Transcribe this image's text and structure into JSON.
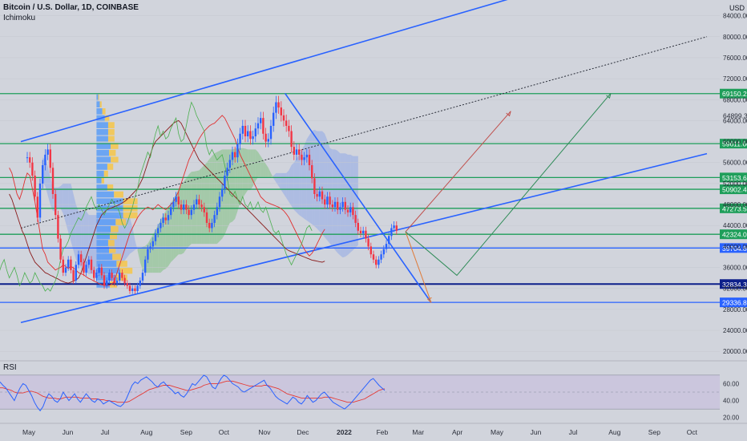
{
  "header": {
    "symbol": "Bitcoin / U.S. Dollar, 1D, COINBASE",
    "indicator": "Ichimoku"
  },
  "rsi": {
    "label": "RSI"
  },
  "axis": {
    "currency": "USD"
  },
  "colors": {
    "background": "#d1d4dc",
    "candle_up": "#2962ff",
    "candle_down": "#f23645",
    "channel": "#2962ff",
    "level_green": "#1e9e5a",
    "level_blue": "#2962ff",
    "level_navy": "#0c1f8a",
    "tenkan": "#e03030",
    "kijun_lagging": "#4caf50",
    "cloud_green": "#7fbf7f",
    "cloud_blue": "#8fa8e8",
    "volume_profile_blue": "#5b9cf6",
    "volume_profile_yellow": "#f7c548",
    "rsi_line": "#2962ff",
    "rsi_ma": "#e53935"
  },
  "chart_data": {
    "type": "candlestick",
    "title": "Bitcoin / U.S. Dollar, 1D, COINBASE",
    "ylim": [
      18500,
      87000
    ],
    "y_ticks": [
      20000,
      24000,
      28000,
      32000,
      36000,
      40000,
      44000,
      48000,
      52000,
      56000,
      60000,
      64000,
      68000,
      72000,
      76000,
      80000,
      84000
    ],
    "x_tick_labels": [
      "May",
      "Jun",
      "Jul",
      "Aug",
      "Sep",
      "Oct",
      "Nov",
      "Dec",
      "2022",
      "Feb",
      "Mar",
      "Apr",
      "May",
      "Jun",
      "Jul",
      "Aug",
      "Sep",
      "Oct"
    ],
    "x_tick_days": [
      0,
      31,
      61,
      92,
      123,
      153,
      184,
      214,
      245,
      276,
      304,
      335,
      365,
      396,
      426,
      457,
      488,
      518
    ],
    "last_price": 64899.32,
    "price_levels": [
      {
        "label": "69150.23",
        "value": 69150.23,
        "kind": "green"
      },
      {
        "label": "59611.60",
        "value": 59611.6,
        "kind": "green"
      },
      {
        "label": "53153.62",
        "value": 53153.62,
        "kind": "green"
      },
      {
        "label": "50902.41",
        "value": 50902.41,
        "kind": "green"
      },
      {
        "label": "47273.58",
        "value": 47273.58,
        "kind": "green"
      },
      {
        "label": "42324.00",
        "value": 42324.0,
        "kind": "green"
      },
      {
        "label": "39704.88",
        "value": 39704.88,
        "kind": "blue"
      },
      {
        "label": "32834.35",
        "value": 32834.35,
        "kind": "navy"
      },
      {
        "label": "29336.80",
        "value": 29336.8,
        "kind": "blue"
      }
    ],
    "channel_lines": [
      {
        "name": "upper channel",
        "points": [
          [
            -5,
            60000
          ],
          [
            380,
            87500
          ]
        ]
      },
      {
        "name": "lower channel",
        "points": [
          [
            -5,
            25500
          ],
          [
            530,
            57700
          ]
        ]
      }
    ],
    "dotted_trendline": {
      "points": [
        [
          -5,
          43500
        ],
        [
          530,
          80000
        ]
      ]
    },
    "descending_trendline": {
      "points": [
        [
          201,
          69200
        ],
        [
          315,
          29300
        ]
      ]
    },
    "projections": [
      {
        "name": "bullish path",
        "color": "#c0504d",
        "points": [
          [
            295,
            42800
          ],
          [
            377,
            65800
          ]
        ]
      },
      {
        "name": "bearish path",
        "color": "#e07b39",
        "points": [
          [
            295,
            42800
          ],
          [
            315,
            29300
          ]
        ]
      },
      {
        "name": "alternative path",
        "color": "#2e8b57",
        "points": [
          [
            295,
            42800
          ],
          [
            335,
            34500
          ],
          [
            455,
            69200
          ]
        ]
      }
    ],
    "price_closes": [
      57000,
      56000,
      53500,
      49500,
      45500,
      52000,
      55500,
      57500,
      58500,
      55000,
      50000,
      46000,
      41500,
      37500,
      35000,
      36000,
      37500,
      35500,
      33500,
      36500,
      38500,
      37000,
      35000,
      36500,
      37500,
      35500,
      34000,
      35000,
      36000,
      34500,
      32500,
      33500,
      35000,
      34000,
      33000,
      33500,
      35000,
      34000,
      33000,
      32500,
      31500,
      32000,
      31500,
      32500,
      33500,
      35000,
      37500,
      39500,
      40000,
      41000,
      42500,
      43500,
      44500,
      45500,
      45000,
      46000,
      47500,
      48500,
      49500,
      48000,
      47000,
      48000,
      47000,
      46000,
      47000,
      48000,
      49000,
      48000,
      47500,
      46500,
      44500,
      43500,
      44500,
      46000,
      47500,
      49500,
      51000,
      53500,
      55000,
      56500,
      58000,
      57000,
      59500,
      61500,
      63000,
      61000,
      62000,
      60500,
      61000,
      62500,
      63500,
      64500,
      61500,
      60000,
      60500,
      63000,
      65500,
      67500,
      66500,
      65000,
      64000,
      63000,
      62000,
      59000,
      57500,
      58500,
      57500,
      56500,
      57000,
      57500,
      55500,
      53000,
      50000,
      49500,
      50500,
      49000,
      48000,
      49500,
      48000,
      47500,
      48500,
      47000,
      47500,
      48500,
      47000,
      46500,
      47500,
      46000,
      44500,
      43000,
      42500,
      43000,
      41500,
      40000,
      38500,
      37500,
      36500,
      37500,
      38500,
      39500,
      40500,
      42000,
      43500,
      44000,
      43000
    ],
    "tenkan": [
      55000,
      54000,
      52000,
      50000,
      49000,
      50500,
      52500,
      54000,
      53500,
      51000,
      48500,
      45500,
      42500,
      39500,
      38500,
      37000,
      36500,
      36000,
      35500,
      35800,
      36000,
      36500,
      36200,
      35800,
      36200,
      35900,
      35500,
      35000,
      34800,
      34600,
      34200,
      33900,
      33700,
      33400,
      33200,
      32900,
      32700,
      32600,
      32500,
      32600,
      32800,
      33500,
      35000,
      36500,
      38000,
      39500,
      41000,
      42500,
      43500,
      44500,
      45500,
      46200,
      46800,
      47200,
      47500,
      47300,
      47000,
      47500,
      48000,
      47600,
      47300,
      47000,
      47500,
      48000,
      48500,
      49500,
      50500,
      52000,
      53500,
      55000,
      56500,
      57500,
      58500,
      59500,
      60500,
      61300,
      62000,
      62500,
      63000,
      63300,
      63500,
      64000,
      64500,
      65000,
      64500,
      63500,
      62500,
      61500,
      60500,
      59000,
      57500,
      56500,
      55500,
      54500,
      53500,
      52500,
      51500,
      50500,
      49500,
      49000,
      48500,
      48300,
      48100,
      47900,
      47700,
      47500,
      47200,
      46800,
      46200,
      45500,
      44500,
      43500,
      42500,
      41500,
      40500,
      39500,
      38800,
      38200,
      38700,
      39500,
      40500,
      41500,
      42500,
      43300
    ],
    "kijun": [
      50000,
      49000,
      47500,
      46000,
      44500,
      43000,
      42000,
      40500,
      39000,
      38000,
      37000,
      36500,
      36000,
      35500,
      35000,
      34800,
      34500,
      34300,
      34000,
      33800,
      33500,
      33300,
      33100,
      33000,
      33200,
      33400,
      33600,
      34000,
      35000,
      36500,
      38000,
      39500,
      41000,
      42500,
      44000,
      45000,
      46000,
      46500,
      47000,
      47200,
      47400,
      47600,
      47800,
      48000,
      48300,
      48600,
      49000,
      49500,
      50000,
      50500,
      51000,
      52000,
      53000,
      54500,
      56000,
      57500,
      59000,
      60000,
      60500,
      61000,
      61500,
      62000,
      62500,
      63000,
      63500,
      63800,
      64000,
      63500,
      62500,
      61500,
      60500,
      59500,
      58500,
      57500,
      56500,
      56000,
      55500,
      55000,
      54500,
      54000,
      53500,
      53000,
      52500,
      52000,
      51500,
      51000,
      50500,
      50000,
      49500,
      49000,
      48500,
      48000,
      47500,
      47000,
      46500,
      46000,
      45500,
      45000,
      44500,
      44000,
      43500,
      43000,
      42500,
      42000,
      41500,
      41000,
      40500,
      40000,
      39500,
      39200,
      39000,
      38800,
      38600,
      38400,
      38200,
      38000,
      37800,
      37600,
      37400,
      37300,
      37200,
      37100,
      37000,
      37200
    ],
    "rsi_ylim": [
      15,
      85
    ],
    "rsi_ticks": [
      20,
      40,
      60
    ],
    "rsi_bands": [
      30,
      70
    ],
    "rsi_mid": 50,
    "rsi_values": [
      62,
      58,
      55,
      50,
      45,
      40,
      48,
      55,
      60,
      58,
      52,
      46,
      38,
      32,
      28,
      33,
      42,
      48,
      45,
      40,
      38,
      42,
      50,
      45,
      40,
      44,
      48,
      42,
      38,
      43,
      48,
      44,
      40,
      38,
      42,
      40,
      36,
      38,
      40,
      38,
      36,
      34,
      33,
      36,
      42,
      50,
      58,
      62,
      60,
      64,
      66,
      68,
      65,
      62,
      58,
      56,
      60,
      62,
      58,
      55,
      52,
      48,
      50,
      46,
      44,
      48,
      54,
      60,
      58,
      62,
      66,
      70,
      68,
      62,
      56,
      54,
      60,
      66,
      70,
      68,
      64,
      60,
      58,
      56,
      52,
      50,
      52,
      54,
      56,
      58,
      60,
      62,
      64,
      58,
      55,
      50,
      45,
      42,
      40,
      38,
      36,
      40,
      44,
      42,
      38,
      36,
      40,
      46,
      42,
      38,
      40,
      44,
      48,
      50,
      46,
      42,
      38,
      36,
      34,
      32,
      30,
      33,
      36,
      40,
      44,
      48,
      52,
      56,
      60,
      64,
      66,
      62,
      58,
      55,
      52
    ],
    "rsi_ma": [
      55,
      55,
      54,
      53,
      52,
      50,
      49,
      49,
      49,
      50,
      51,
      51,
      50,
      49,
      47,
      45,
      44,
      43,
      43,
      43,
      42,
      42,
      43,
      44,
      44,
      44,
      44,
      44,
      43,
      43,
      43,
      43,
      42,
      42,
      42,
      41,
      41,
      40,
      40,
      39,
      39,
      38,
      38,
      38,
      38,
      39,
      41,
      43,
      45,
      47,
      49,
      51,
      53,
      54,
      55,
      56,
      57,
      58,
      58,
      58,
      57,
      56,
      55,
      54,
      53,
      52,
      52,
      53,
      54,
      55,
      56,
      58,
      59,
      60,
      60,
      60,
      60,
      61,
      62,
      63,
      63,
      63,
      62,
      61,
      60,
      59,
      58,
      57,
      57,
      57,
      57,
      57,
      58,
      58,
      57,
      56,
      55,
      54,
      52,
      50,
      48,
      47,
      46,
      45,
      44,
      43,
      43,
      43,
      43,
      43,
      43,
      43,
      43,
      44,
      44,
      44,
      43,
      42,
      41,
      40,
      39,
      38,
      38,
      38,
      39,
      40,
      41,
      42,
      44,
      46,
      48,
      50,
      52,
      53,
      54
    ],
    "volume_profile": {
      "price_low": 32000,
      "price_high": 69000,
      "bins": 28
    }
  }
}
